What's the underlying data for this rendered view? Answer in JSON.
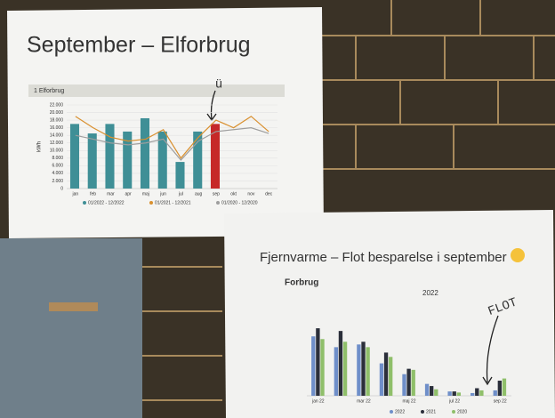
{
  "chart_data": [
    {
      "type": "bar",
      "title": "September – Elforbrug",
      "subtitle": "1 Elforbrug",
      "y_label": "kWh",
      "annotation": "ü",
      "categories": [
        "jan",
        "feb",
        "mar",
        "apr",
        "maj",
        "jun",
        "jul",
        "aug",
        "sep",
        "okt",
        "nov",
        "dec"
      ],
      "series": [
        {
          "name": "01/2022 - 12/2022",
          "type": "bar",
          "color": "#3f8f96",
          "colors": [
            "#3f8f96",
            "#3f8f96",
            "#3f8f96",
            "#3f8f96",
            "#3f8f96",
            "#3f8f96",
            "#3f8f96",
            "#3f8f96",
            "#c62828",
            "#3f8f96",
            "#3f8f96",
            "#3f8f96"
          ],
          "values": [
            17000,
            14500,
            17000,
            15000,
            18500,
            15000,
            7000,
            15000,
            17000,
            null,
            null,
            null
          ]
        },
        {
          "name": "01/2021 - 12/2021",
          "type": "line",
          "color": "#d9902f",
          "values": [
            19000,
            16000,
            13500,
            12500,
            13000,
            15500,
            8000,
            13500,
            18000,
            16000,
            19000,
            15000
          ]
        },
        {
          "name": "01/2020 - 12/2020",
          "type": "line",
          "color": "#9e9e9e",
          "values": [
            14000,
            13000,
            12000,
            11500,
            12000,
            13000,
            7500,
            12500,
            15000,
            15500,
            16000,
            14500
          ]
        }
      ],
      "ylim": [
        0,
        22000
      ],
      "yticks": [
        0,
        {
          "value": 2000,
          "label": "2.000"
        },
        {
          "value": 4000,
          "label": "4.000"
        },
        {
          "value": 6000,
          "label": "6.000"
        },
        {
          "value": 8000,
          "label": "8.000"
        },
        {
          "value": 10000,
          "label": "10.000"
        },
        {
          "value": 12000,
          "label": "12.000"
        },
        {
          "value": 14000,
          "label": "14.000"
        },
        {
          "value": 16000,
          "label": "16.000"
        },
        {
          "value": 18000,
          "label": "18.000"
        },
        {
          "value": 20000,
          "label": "20.000"
        },
        {
          "value": 22000,
          "label": "22.000"
        }
      ],
      "grid": true
    },
    {
      "type": "bar",
      "title": "Fjernvarme – Flot besparelse i september",
      "subtitle": "Forbrug",
      "period": "2022",
      "annotation": "FLOT",
      "categories": [
        "jan 22",
        null,
        "mar 22",
        null,
        "maj 22",
        null,
        "jul 22",
        null,
        "sep 22"
      ],
      "series": [
        {
          "name": "2022",
          "type": "bar",
          "color": "#6f8fc9",
          "values": [
            110,
            90,
            95,
            60,
            40,
            22,
            8,
            5,
            10
          ]
        },
        {
          "name": "2021",
          "type": "bar",
          "color": "#2b2f3a",
          "values": [
            125,
            120,
            100,
            80,
            50,
            18,
            8,
            14,
            28
          ]
        },
        {
          "name": "2020",
          "type": "bar",
          "color": "#8fbf6a",
          "values": [
            105,
            100,
            90,
            72,
            48,
            12,
            6,
            10,
            32
          ]
        }
      ],
      "ylim": [
        0,
        140
      ],
      "grid": false
    }
  ]
}
